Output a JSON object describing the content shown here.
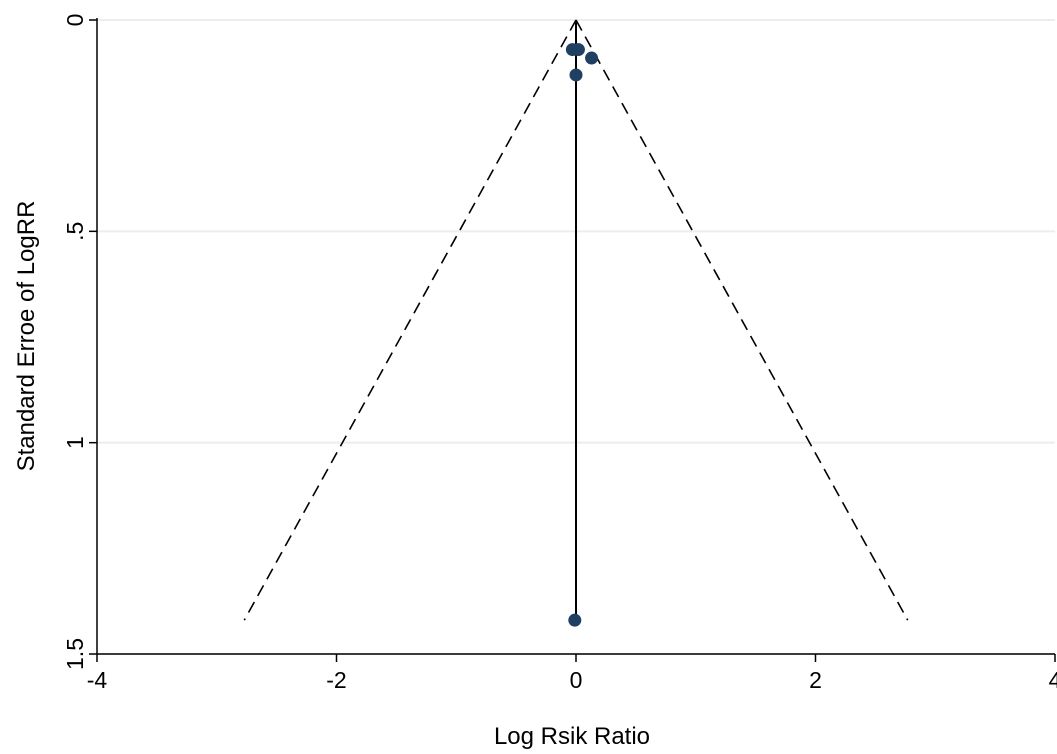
{
  "chart_data": {
    "type": "scatter",
    "subtype": "funnel-plot",
    "title": "",
    "xlabel": "Log Rsik Ratio",
    "ylabel": "Standard Erroe of LogRR",
    "xlim": [
      -4,
      4
    ],
    "ylim": [
      1.5,
      0
    ],
    "y_reversed": true,
    "grid": "horizontal",
    "legend": "none",
    "x_ticks": [
      -4,
      -2,
      0,
      2,
      4
    ],
    "x_tick_labels": [
      "-4",
      "-2",
      "0",
      "2",
      "4"
    ],
    "y_ticks": [
      0,
      0.5,
      1,
      1.5
    ],
    "y_tick_labels": [
      "0",
      ".5",
      "1",
      "1.5"
    ],
    "pooled_estimate": 0,
    "funnel": {
      "apex": [
        0,
        0
      ],
      "left_end": [
        -2.77,
        1.42
      ],
      "right_end": [
        2.77,
        1.42
      ]
    },
    "points": [
      {
        "x": -0.03,
        "y": 0.07
      },
      {
        "x": 0.02,
        "y": 0.07
      },
      {
        "x": 0.13,
        "y": 0.09
      },
      {
        "x": 0.0,
        "y": 0.13
      },
      {
        "x": -0.01,
        "y": 1.42
      }
    ],
    "colors": {
      "points": "#1f3f63",
      "grid": "#e8eef1",
      "funnel": "#000000"
    }
  }
}
